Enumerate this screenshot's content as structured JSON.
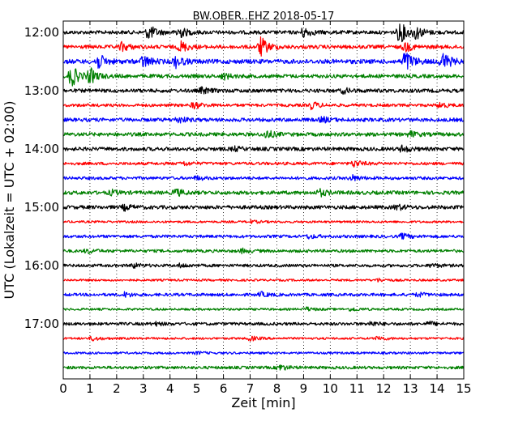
{
  "chart_data": {
    "type": "line",
    "title": "BW.OBER..EHZ 2018-05-17",
    "xlabel": "Zeit  [min]",
    "ylabel": "UTC (Lokalzeit = UTC + 02:00)",
    "xlim": [
      0,
      15
    ],
    "x_ticks": [
      "0",
      "1",
      "2",
      "3",
      "4",
      "5",
      "6",
      "7",
      "8",
      "9",
      "10",
      "11",
      "12",
      "13",
      "14",
      "15"
    ],
    "y_ticks": [
      "12:00",
      "13:00",
      "14:00",
      "15:00",
      "16:00",
      "17:00"
    ],
    "grid": "vertical dotted",
    "colors": [
      "#000000",
      "#ff0000",
      "#0000ff",
      "#008000"
    ],
    "series": [
      {
        "start": "12:00",
        "amplitude": 0.5,
        "events": [
          [
            3.2,
            2.0
          ],
          [
            4.3,
            1.8
          ],
          [
            9.0,
            1.3
          ],
          [
            12.6,
            3.0
          ],
          [
            13.2,
            1.6
          ]
        ]
      },
      {
        "start": "12:15",
        "amplitude": 0.5,
        "events": [
          [
            2.2,
            1.2
          ],
          [
            4.4,
            1.5
          ],
          [
            7.4,
            2.6
          ],
          [
            12.8,
            1.2
          ]
        ]
      },
      {
        "start": "12:30",
        "amplitude": 0.6,
        "events": [
          [
            1.3,
            2.0
          ],
          [
            3.0,
            1.6
          ],
          [
            4.2,
            1.5
          ],
          [
            12.8,
            3.0
          ],
          [
            14.2,
            2.5
          ]
        ]
      },
      {
        "start": "12:45",
        "amplitude": 0.5,
        "events": [
          [
            0.3,
            3.0
          ],
          [
            1.0,
            2.0
          ],
          [
            6.0,
            0.8
          ]
        ]
      },
      {
        "start": "13:00",
        "amplitude": 0.5,
        "events": [
          [
            5.2,
            0.8
          ],
          [
            10.5,
            0.6
          ]
        ]
      },
      {
        "start": "13:15",
        "amplitude": 0.4,
        "events": [
          [
            4.9,
            0.9
          ],
          [
            9.3,
            1.0
          ],
          [
            14.1,
            0.7
          ]
        ]
      },
      {
        "start": "13:30",
        "amplitude": 0.5,
        "events": [
          [
            4.3,
            0.8
          ],
          [
            9.7,
            0.7
          ]
        ]
      },
      {
        "start": "13:45",
        "amplitude": 0.5,
        "events": [
          [
            7.6,
            1.1
          ],
          [
            13.0,
            0.7
          ]
        ]
      },
      {
        "start": "14:00",
        "amplitude": 0.5,
        "events": [
          [
            12.7,
            0.9
          ],
          [
            6.4,
            0.5
          ]
        ]
      },
      {
        "start": "14:15",
        "amplitude": 0.4,
        "events": [
          [
            10.9,
            0.9
          ],
          [
            4.5,
            0.5
          ]
        ]
      },
      {
        "start": "14:30",
        "amplitude": 0.4,
        "events": [
          [
            10.8,
            0.8
          ],
          [
            5.0,
            0.5
          ]
        ]
      },
      {
        "start": "14:45",
        "amplitude": 0.5,
        "events": [
          [
            4.2,
            1.0
          ],
          [
            9.6,
            0.9
          ],
          [
            1.8,
            0.6
          ]
        ]
      },
      {
        "start": "15:00",
        "amplitude": 0.5,
        "events": [
          [
            2.3,
            0.7
          ],
          [
            12.5,
            0.7
          ]
        ]
      },
      {
        "start": "15:15",
        "amplitude": 0.3,
        "events": [
          [
            7.0,
            0.4
          ]
        ]
      },
      {
        "start": "15:30",
        "amplitude": 0.4,
        "events": [
          [
            12.7,
            0.7
          ],
          [
            9.2,
            0.5
          ]
        ]
      },
      {
        "start": "15:45",
        "amplitude": 0.4,
        "events": [
          [
            0.9,
            0.6
          ],
          [
            6.7,
            0.5
          ]
        ]
      },
      {
        "start": "16:00",
        "amplitude": 0.4,
        "events": [
          [
            2.6,
            0.6
          ],
          [
            4.4,
            0.5
          ],
          [
            13.8,
            0.5
          ]
        ]
      },
      {
        "start": "16:15",
        "amplitude": 0.3,
        "events": [
          [
            11.8,
            0.4
          ]
        ]
      },
      {
        "start": "16:30",
        "amplitude": 0.4,
        "events": [
          [
            2.3,
            0.6
          ],
          [
            7.4,
            0.6
          ],
          [
            13.3,
            0.5
          ]
        ]
      },
      {
        "start": "16:45",
        "amplitude": 0.3,
        "events": [
          [
            9.1,
            0.5
          ],
          [
            10.8,
            0.5
          ]
        ]
      },
      {
        "start": "17:00",
        "amplitude": 0.4,
        "events": [
          [
            3.4,
            0.5
          ],
          [
            11.5,
            0.6
          ],
          [
            13.7,
            0.5
          ]
        ]
      },
      {
        "start": "17:15",
        "amplitude": 0.3,
        "events": [
          [
            1.1,
            0.6
          ],
          [
            7.0,
            0.6
          ],
          [
            11.8,
            0.6
          ]
        ]
      },
      {
        "start": "17:30",
        "amplitude": 0.3,
        "events": [
          [
            5.0,
            0.3
          ]
        ]
      },
      {
        "start": "17:45",
        "amplitude": 0.4,
        "events": [
          [
            8.1,
            0.8
          ]
        ]
      }
    ]
  }
}
